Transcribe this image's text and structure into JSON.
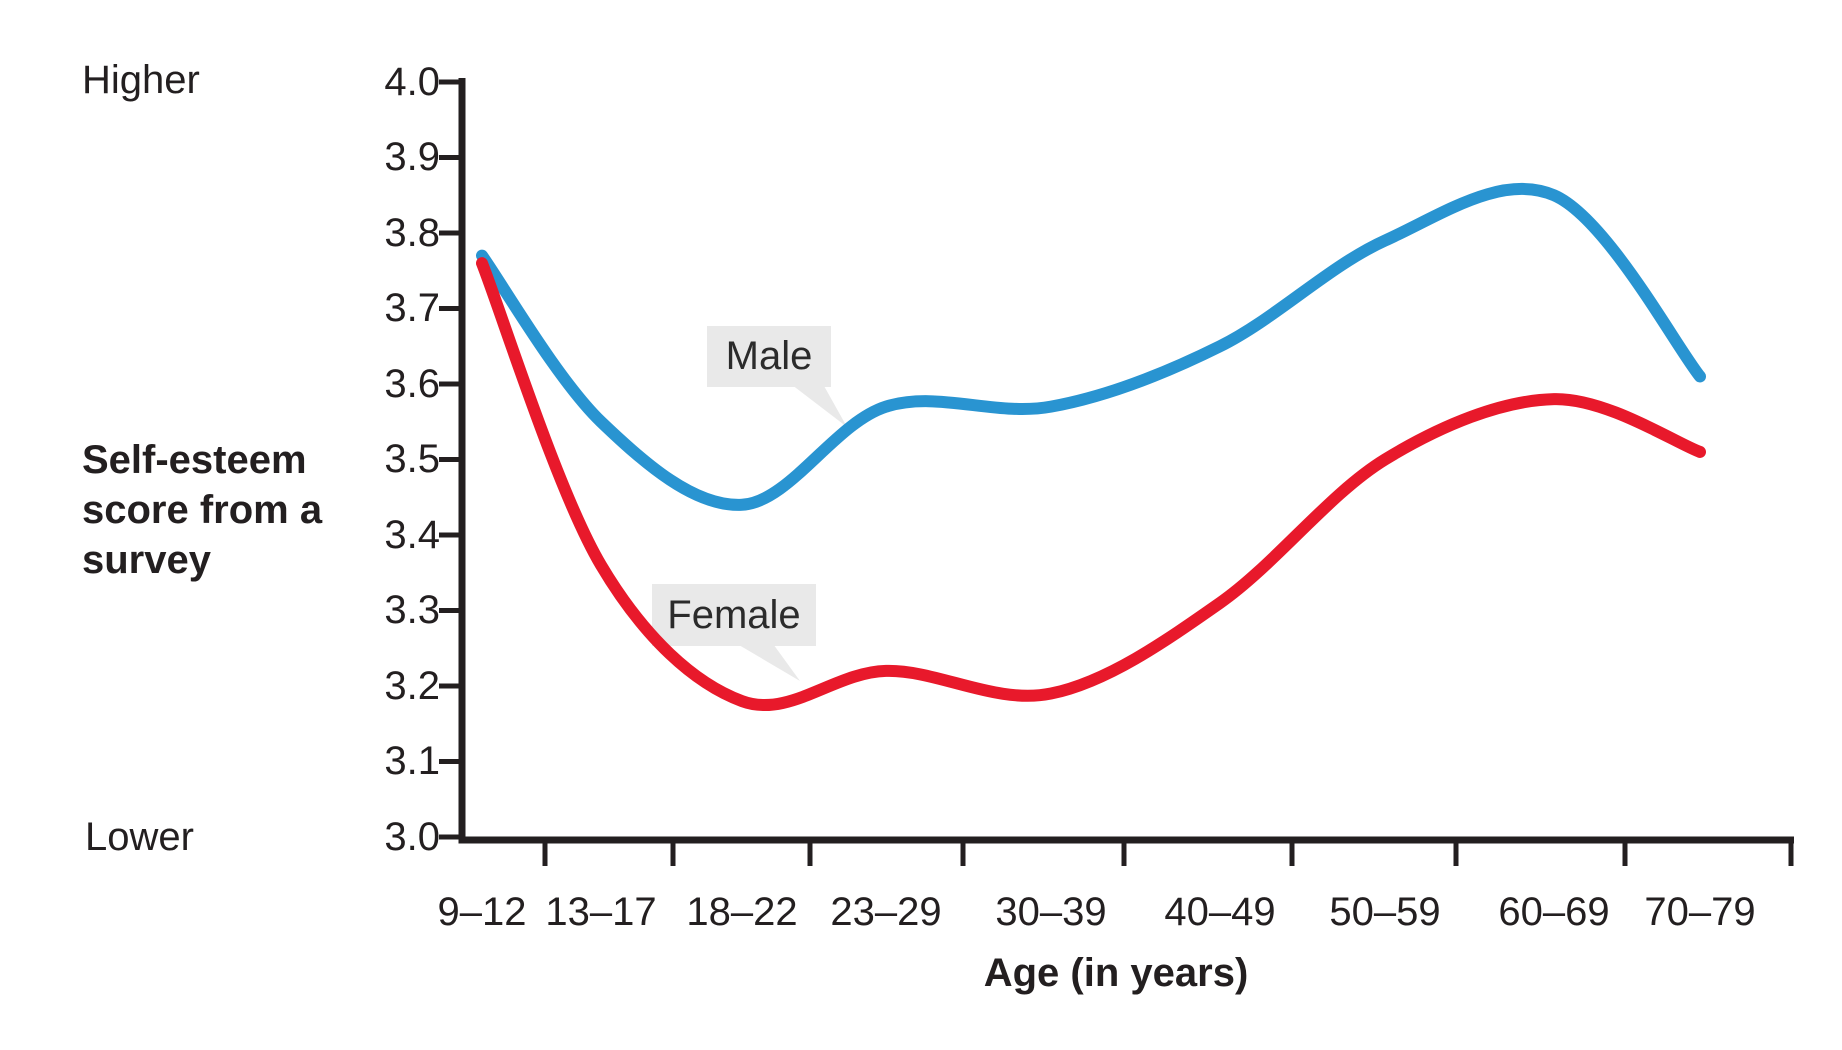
{
  "chart_data": {
    "type": "line",
    "title": "",
    "categories": [
      "9–12",
      "13–17",
      "18–22",
      "23–29",
      "30–39",
      "40–49",
      "50–59",
      "60–69",
      "70–79"
    ],
    "y_tick_labels": [
      "4.0",
      "3.9",
      "3.8",
      "3.7",
      "3.6",
      "3.5",
      "3.4",
      "3.3",
      "3.2",
      "3.1",
      "3.0"
    ],
    "series": [
      {
        "name": "Male",
        "color": "#2994D1",
        "values": [
          3.77,
          3.55,
          3.44,
          3.57,
          3.57,
          3.65,
          3.79,
          3.85,
          3.61
        ]
      },
      {
        "name": "Female",
        "color": "#E8192B",
        "values": [
          3.76,
          3.36,
          3.18,
          3.22,
          3.19,
          3.31,
          3.5,
          3.58,
          3.51
        ]
      }
    ],
    "xlabel": "Age (in years)",
    "ylabel": "Self-esteem score from a survey",
    "ylim": [
      3.0,
      4.0
    ],
    "y_tick_step": 0.1,
    "qualitative_axis_labels": {
      "top": "Higher",
      "bottom": "Lower"
    },
    "legend_style": "speech-bubble annotations attached to curves",
    "grid": false,
    "axis_color": "#231F20"
  },
  "labels": {
    "higher": "Higher",
    "lower": "Lower",
    "ylabel_lines": [
      "Self-esteem",
      "score from a",
      "survey"
    ],
    "xlabel": "Age (in years)"
  }
}
